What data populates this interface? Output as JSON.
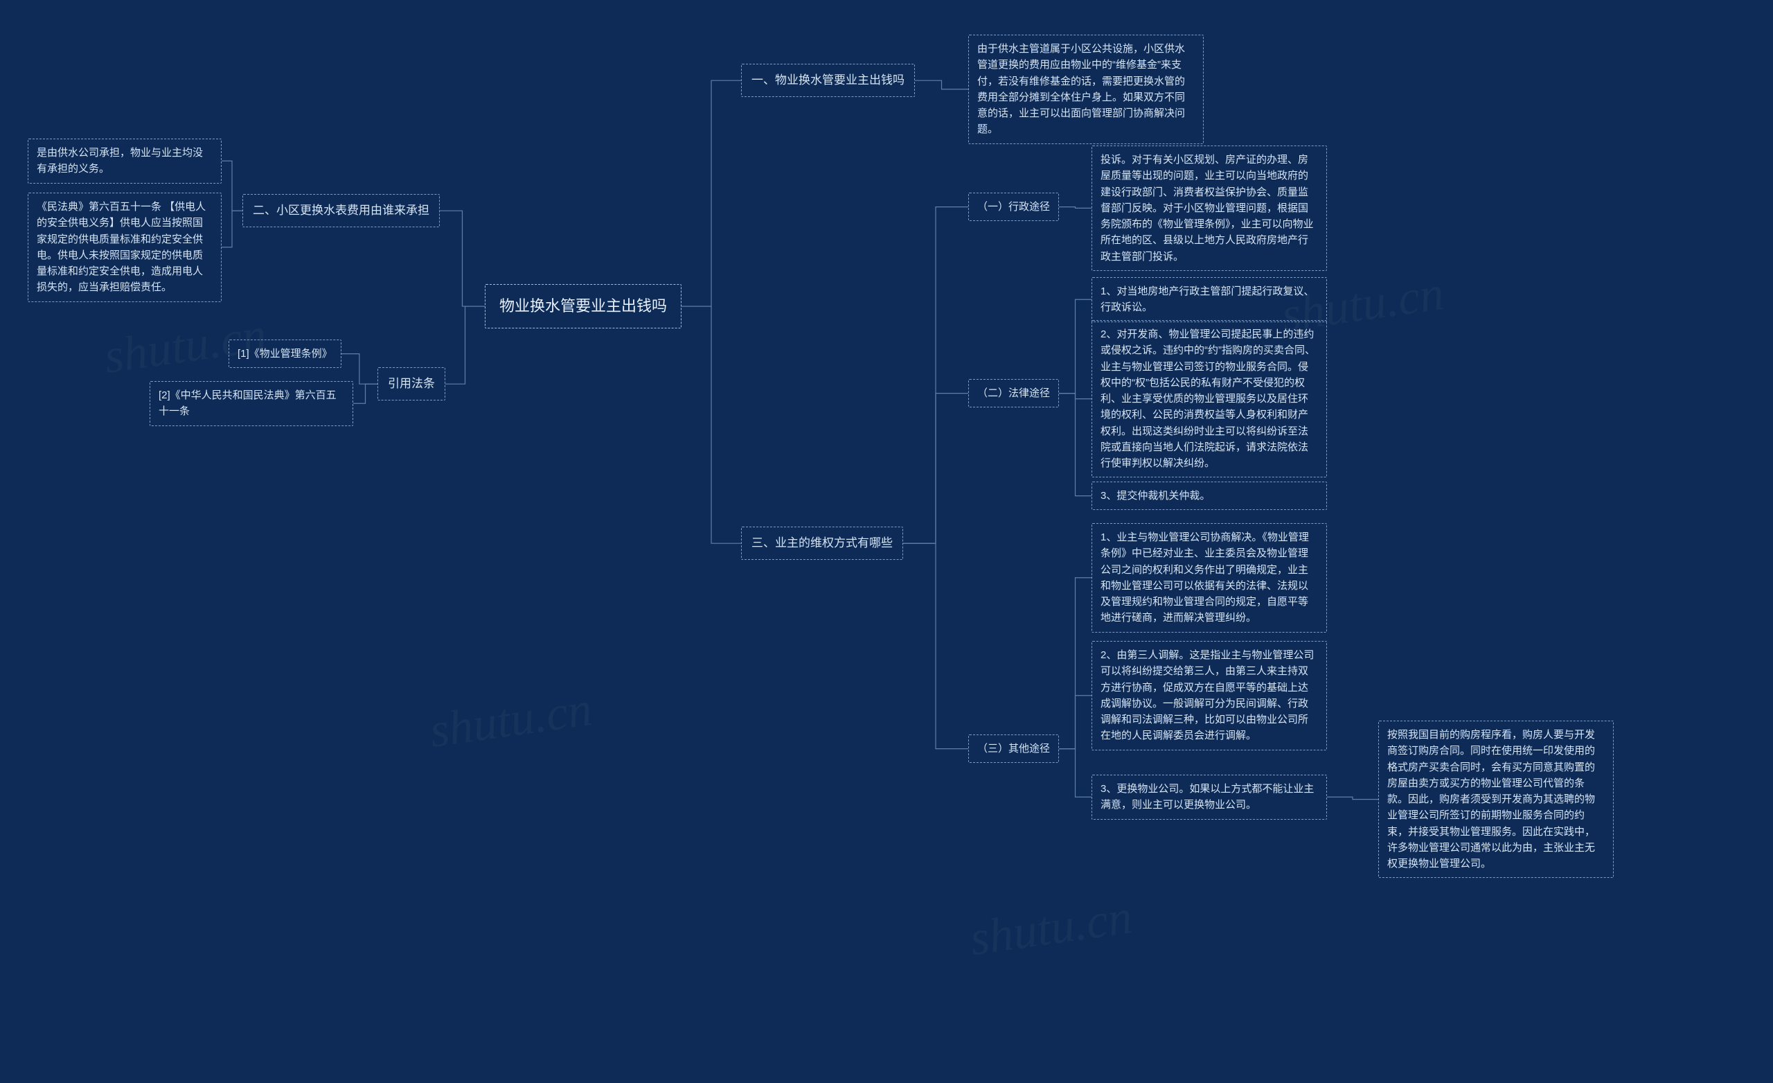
{
  "background_color": "#0d2b56",
  "node_border_color": "#7a9cc6",
  "node_text_color": "#d5e4f5",
  "connector_color": "#5d7fa8",
  "root": {
    "label": "物业换水管要业主出钱吗"
  },
  "right": {
    "s1": {
      "label": "一、物业换水管要业主出钱吗",
      "detail": "由于供水主管道属于小区公共设施，小区供水管道更换的费用应由物业中的“维修基金”来支付，若没有维修基金的话，需要把更换水管的费用全部分摊到全体住户身上。如果双方不同意的话，业主可以出面向管理部门协商解决问题。"
    },
    "s3": {
      "label": "三、业主的维权方式有哪些",
      "c1": {
        "label": "（一）行政途径",
        "detail": "投诉。对于有关小区规划、房产证的办理、房屋质量等出现的问题，业主可以向当地政府的建设行政部门、消费者权益保护协会、质量监督部门反映。对于小区物业管理问题，根据国务院颁布的《物业管理条例》，业主可以向物业所在地的区、县级以上地方人民政府房地产行政主管部门投诉。"
      },
      "c2": {
        "label": "（二）法律途径",
        "d1": "1、对当地房地产行政主管部门提起行政复议、行政诉讼。",
        "d2": "2、对开发商、物业管理公司提起民事上的违约或侵权之诉。违约中的“约”指购房的买卖合同、业主与物业管理公司签订的物业服务合同。侵权中的“权”包括公民的私有财产不受侵犯的权利、业主享受优质的物业管理服务以及居住环境的权利、公民的消费权益等人身权利和财产权利。出现这类纠纷时业主可以将纠纷诉至法院或直接向当地人们法院起诉，请求法院依法行使审判权以解决纠纷。",
        "d3": "3、提交仲裁机关仲裁。"
      },
      "c3": {
        "label": "（三）其他途径",
        "d1": "1、业主与物业管理公司协商解决。《物业管理条例》中已经对业主、业主委员会及物业管理公司之间的权利和义务作出了明确规定，业主和物业管理公司可以依据有关的法律、法规以及管理规约和物业管理合同的规定，自愿平等地进行磋商，进而解决管理纠纷。",
        "d2": "2、由第三人调解。这是指业主与物业管理公司可以将纠纷提交给第三人，由第三人来主持双方进行协商，促成双方在自愿平等的基础上达成调解协议。一般调解可分为民间调解、行政调解和司法调解三种，比如可以由物业公司所在地的人民调解委员会进行调解。",
        "d3": "3、更换物业公司。如果以上方式都不能让业主满意，则业主可以更换物业公司。",
        "d3_detail": "按照我国目前的购房程序看，购房人要与开发商签订购房合同。同时在使用统一印发使用的格式房产买卖合同时，会有买方同意其购置的房屋由卖方或买方的物业管理公司代管的条款。因此，购房者须受到开发商为其选聘的物业管理公司所签订的前期物业服务合同的约束，并接受其物业管理服务。因此在实践中，许多物业管理公司通常以此为由，主张业主无权更换物业管理公司。"
      }
    }
  },
  "left": {
    "s2": {
      "label": "二、小区更换水表费用由谁来承担",
      "d1": "是由供水公司承担，物业与业主均没有承担的义务。",
      "d2": "《民法典》第六百五十一条 【供电人的安全供电义务】供电人应当按照国家规定的供电质量标准和约定安全供电。供电人未按照国家规定的供电质量标准和约定安全供电，造成用电人损失的，应当承担赔偿责任。"
    },
    "ref": {
      "label": "引用法条",
      "d1": "[1]《物业管理条例》",
      "d2": "[2]《中华人民共和国民法典》第六百五十一条"
    }
  },
  "watermark": "shutu.cn"
}
